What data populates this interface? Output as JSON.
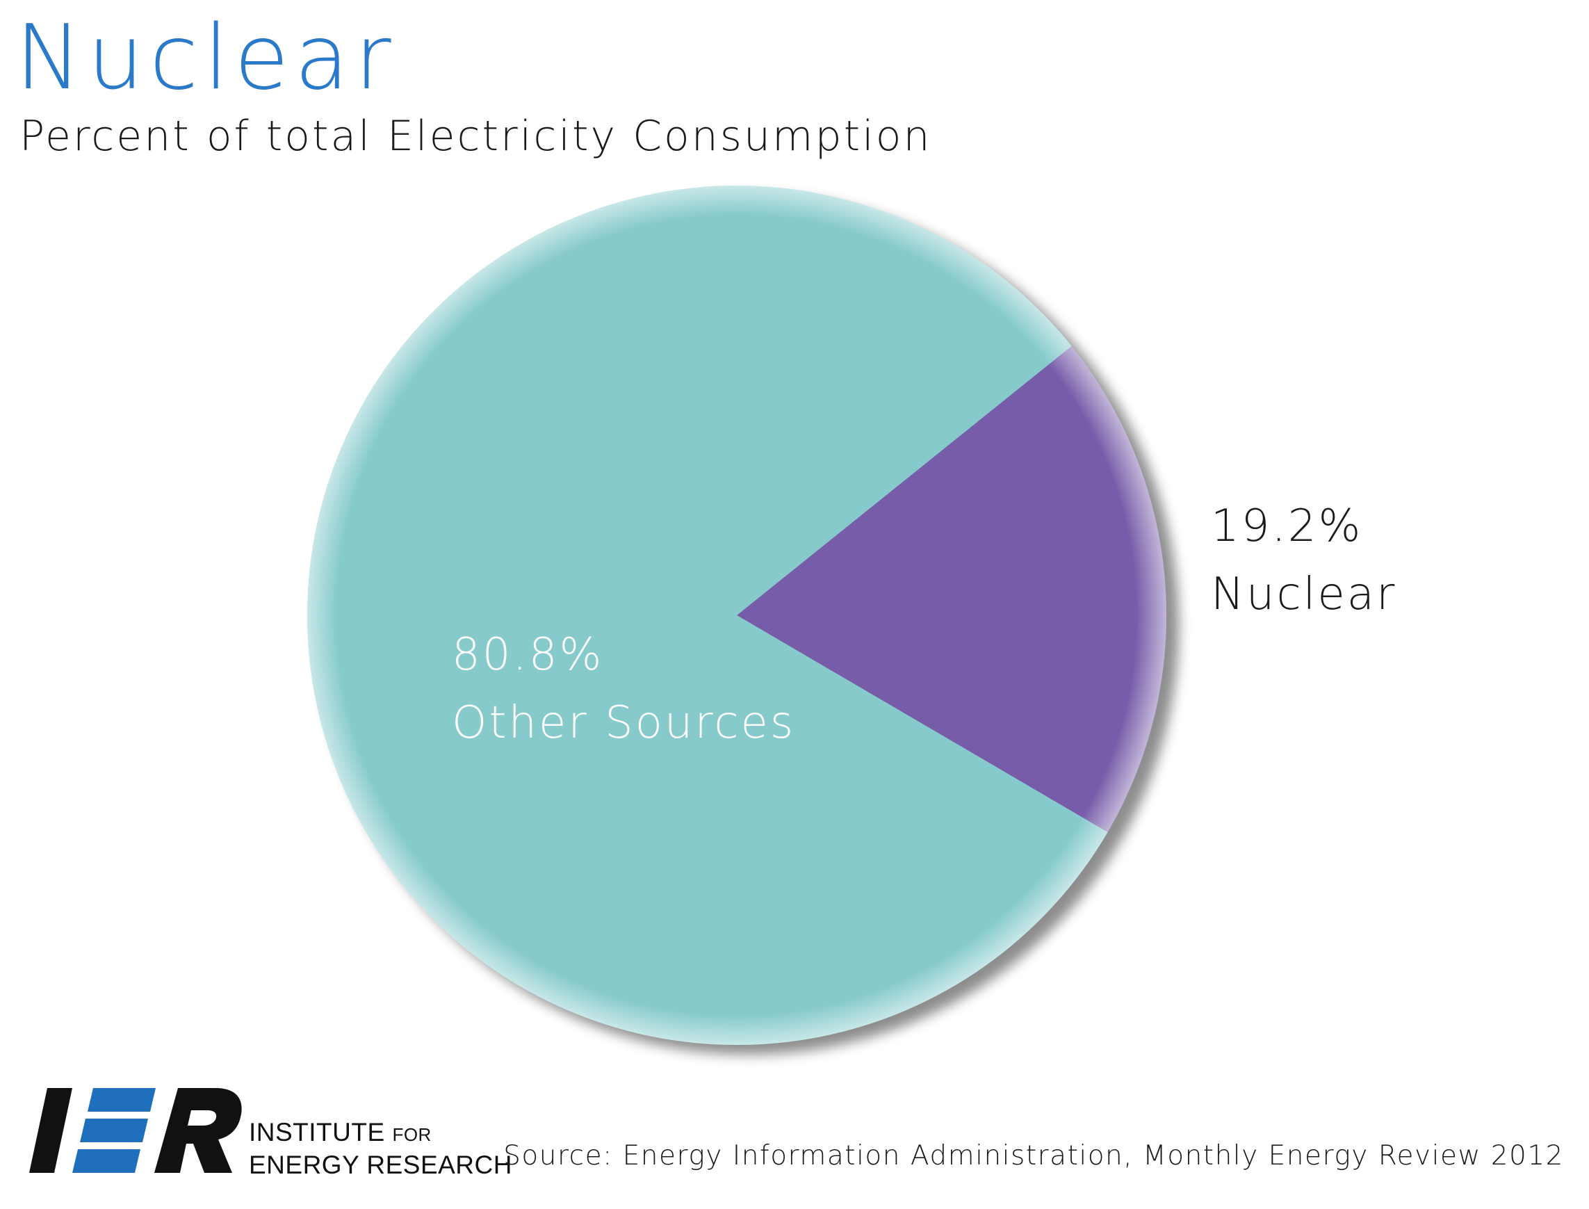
{
  "header": {
    "title": "Nuclear",
    "subtitle": "Percent of total Electricity Consumption"
  },
  "chart_data": {
    "type": "pie",
    "title": "Nuclear",
    "subtitle": "Percent of total Electricity Consumption",
    "slices": [
      {
        "label": "Nuclear",
        "value": 19.2,
        "value_label": "19.2%",
        "color": "#775da9"
      },
      {
        "label": "Other Sources",
        "value": 80.8,
        "value_label": "80.8%",
        "color": "#86cacc"
      }
    ]
  },
  "logo": {
    "mark": "IER",
    "line1": "INSTITUTE",
    "line1_small": "FOR",
    "line2": "ENERGY RESEARCH",
    "colors": {
      "dark": "#111111",
      "blue": "#1f6fbd"
    }
  },
  "footer": {
    "source": "Source: Energy Information Administration, Monthly Energy Review 2012"
  },
  "colors": {
    "title": "#2b79c9",
    "text": "#1a1a1a",
    "label_on_slice": "#ffffff"
  }
}
